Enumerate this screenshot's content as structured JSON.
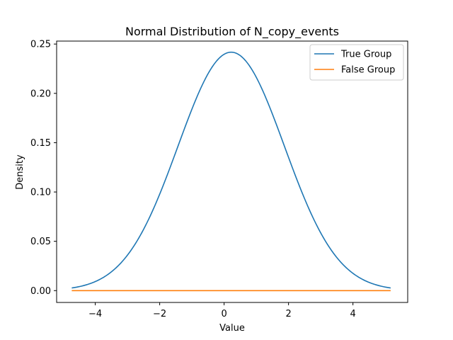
{
  "chart_data": {
    "type": "line",
    "title": "Normal Distribution of N_copy_events",
    "xlabel": "Value",
    "ylabel": "Density",
    "xlim": [
      -5.2,
      5.7
    ],
    "ylim": [
      -0.012,
      0.253
    ],
    "xticks": [
      -4,
      -2,
      0,
      2,
      4
    ],
    "xtick_labels": [
      "−4",
      "−2",
      "0",
      "2",
      "4"
    ],
    "yticks": [
      0.0,
      0.05,
      0.1,
      0.15,
      0.2,
      0.25
    ],
    "ytick_labels": [
      "0.00",
      "0.05",
      "0.10",
      "0.15",
      "0.20",
      "0.25"
    ],
    "grid": false,
    "legend_position": "top-right",
    "series": [
      {
        "name": "True Group",
        "color": "#1f77b4",
        "distribution": {
          "kind": "normal",
          "mean": 0.22,
          "std": 1.65
        },
        "x_range": [
          -4.73,
          5.17
        ]
      },
      {
        "name": "False Group",
        "color": "#ff7f0e",
        "distribution": {
          "kind": "constant",
          "value": 0.0
        },
        "x_range": [
          -4.73,
          5.17
        ]
      }
    ]
  }
}
